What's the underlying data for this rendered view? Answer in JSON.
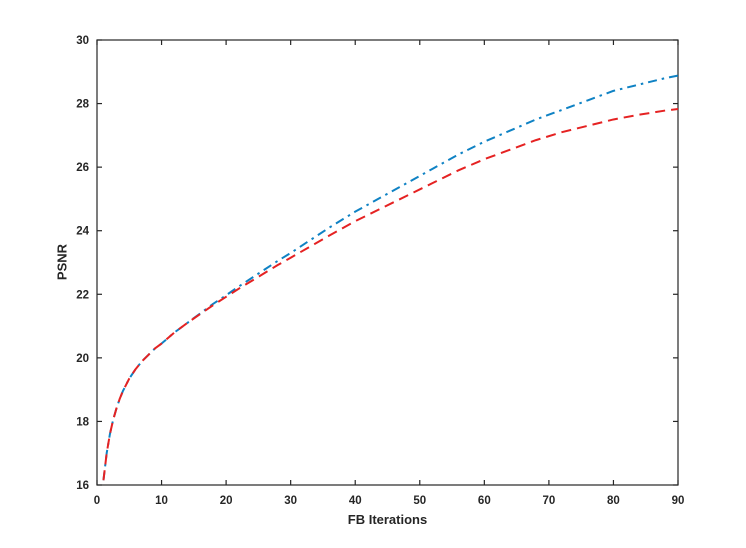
{
  "figure": {
    "background": "#ffffff",
    "axis_color": "#262626"
  },
  "chart_data": {
    "type": "line",
    "title": "",
    "xlabel": "FB Iterations",
    "ylabel": "PSNR",
    "xlim": [
      0,
      90
    ],
    "ylim": [
      16,
      30
    ],
    "xticks": [
      0,
      10,
      20,
      30,
      40,
      50,
      60,
      70,
      80,
      90
    ],
    "yticks": [
      16,
      18,
      20,
      22,
      24,
      26,
      28,
      30
    ],
    "grid": false,
    "legend_position": "none",
    "x": [
      1,
      1.5,
      2,
      2.5,
      3,
      3.5,
      4,
      5,
      6,
      7,
      8,
      9,
      10,
      12,
      14,
      16,
      18,
      20,
      22,
      25,
      28,
      30,
      33,
      36,
      40,
      44,
      48,
      52,
      56,
      60,
      64,
      68,
      72,
      76,
      80,
      84,
      88,
      90
    ],
    "series": [
      {
        "name": "blue-dash-dot-curve",
        "color": "#0f82c4",
        "style": "dash-dot",
        "line_width": 2,
        "values": [
          16.15,
          17.0,
          17.6,
          18.05,
          18.4,
          18.7,
          18.95,
          19.35,
          19.65,
          19.9,
          20.1,
          20.3,
          20.45,
          20.8,
          21.1,
          21.4,
          21.7,
          21.97,
          22.25,
          22.65,
          23.05,
          23.3,
          23.7,
          24.1,
          24.6,
          25.05,
          25.5,
          25.95,
          26.4,
          26.8,
          27.15,
          27.5,
          27.8,
          28.1,
          28.4,
          28.6,
          28.8,
          28.88
        ]
      },
      {
        "name": "red-dashed-curve",
        "color": "#e52222",
        "style": "dashed",
        "line_width": 2,
        "values": [
          16.15,
          17.0,
          17.6,
          18.05,
          18.4,
          18.7,
          18.95,
          19.35,
          19.65,
          19.9,
          20.1,
          20.3,
          20.45,
          20.8,
          21.1,
          21.38,
          21.66,
          21.92,
          22.18,
          22.55,
          22.92,
          23.15,
          23.5,
          23.85,
          24.3,
          24.7,
          25.1,
          25.5,
          25.9,
          26.25,
          26.55,
          26.85,
          27.1,
          27.3,
          27.5,
          27.65,
          27.78,
          27.83
        ]
      }
    ]
  }
}
